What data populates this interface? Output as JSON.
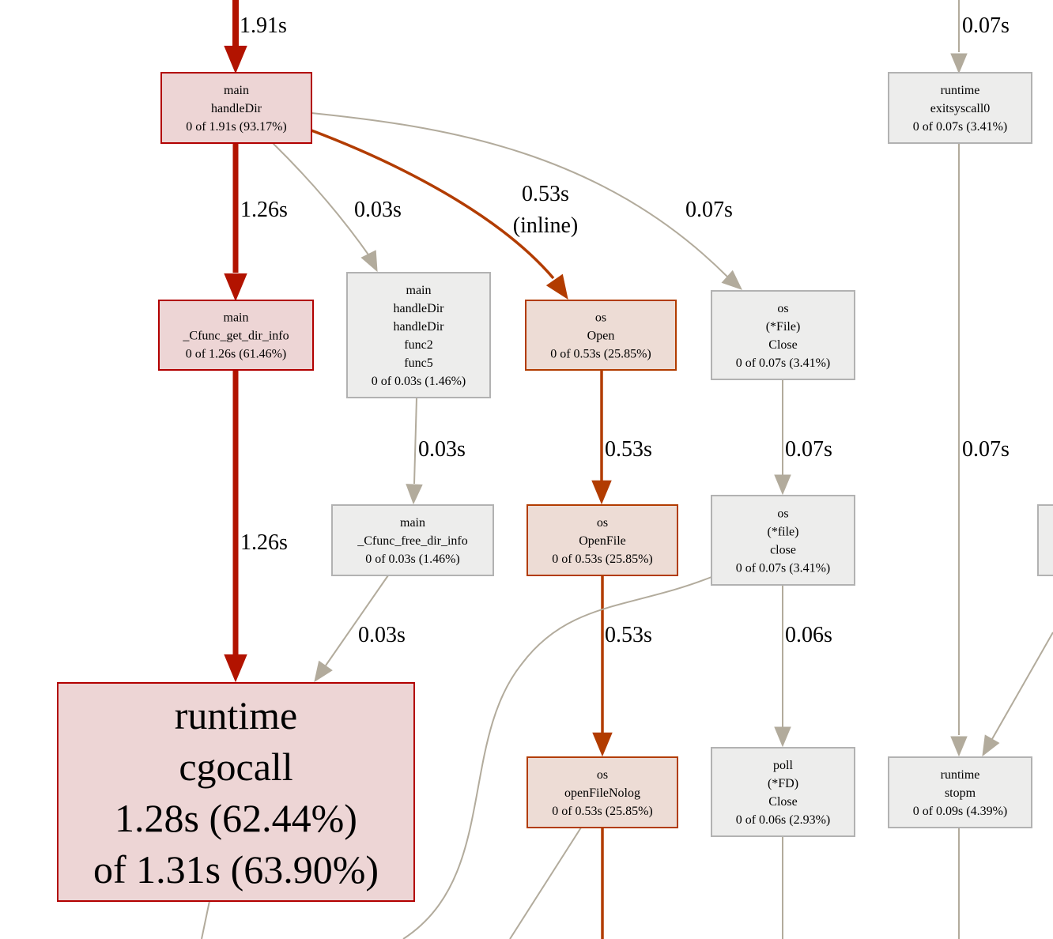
{
  "colors": {
    "hot_fill": "#edd5d5",
    "hot_stroke": "#b20000",
    "hot_edge": "#b21300",
    "warm_fill": "#eddcd5",
    "warm_stroke": "#b23c00",
    "warm_edge": "#b23c00",
    "cold_fill": "#ededec",
    "cold_stroke": "#b2b2b2",
    "cold_edge": "#b2ab9c"
  },
  "nodes": {
    "handleDir": {
      "lines": [
        "main",
        "handleDir",
        "0 of 1.91s (93.17%)"
      ],
      "heat": "hot"
    },
    "cfunc_get_dir_info": {
      "lines": [
        "main",
        "_Cfunc_get_dir_info",
        "0 of 1.26s (61.46%)"
      ],
      "heat": "hot"
    },
    "handleDir_func5": {
      "lines": [
        "main",
        "handleDir",
        "handleDir",
        "func2",
        "func5",
        "0 of 0.03s (1.46%)"
      ],
      "heat": "cold"
    },
    "os_open": {
      "lines": [
        "os",
        "Open",
        "0 of 0.53s (25.85%)"
      ],
      "heat": "warm"
    },
    "file_close": {
      "lines": [
        "os",
        "(*File)",
        "Close",
        "0 of 0.07s (3.41%)"
      ],
      "heat": "cold"
    },
    "cfunc_free_dir_info": {
      "lines": [
        "main",
        "_Cfunc_free_dir_info",
        "0 of 0.03s (1.46%)"
      ],
      "heat": "cold"
    },
    "os_openfile": {
      "lines": [
        "os",
        "OpenFile",
        "0 of 0.53s (25.85%)"
      ],
      "heat": "warm"
    },
    "file_close_lower": {
      "lines": [
        "os",
        "(*file)",
        "close",
        "0 of 0.07s (3.41%)"
      ],
      "heat": "cold"
    },
    "cgocall": {
      "lines": [
        "runtime",
        "cgocall",
        "1.28s (62.44%)",
        "of 1.31s (63.90%)"
      ],
      "heat": "hot"
    },
    "openFileNolog": {
      "lines": [
        "os",
        "openFileNolog",
        "0 of 0.53s (25.85%)"
      ],
      "heat": "warm"
    },
    "fd_close": {
      "lines": [
        "poll",
        "(*FD)",
        "Close",
        "0 of 0.06s (2.93%)"
      ],
      "heat": "cold"
    },
    "exitsyscall0": {
      "lines": [
        "runtime",
        "exitsyscall0",
        "0 of 0.07s (3.41%)"
      ],
      "heat": "cold"
    },
    "stopm": {
      "lines": [
        "runtime",
        "stopm",
        "0 of 0.09s (4.39%)"
      ],
      "heat": "cold"
    },
    "partial_right": {
      "lines": [],
      "heat": "cold"
    }
  },
  "edges": {
    "in_handleDir": {
      "label": [
        "1.91s"
      ],
      "heat": "hot"
    },
    "handleDir_to_cfunc_get": {
      "label": [
        "1.26s"
      ],
      "heat": "hot"
    },
    "handleDir_to_func5": {
      "label": [
        "0.03s"
      ],
      "heat": "cold"
    },
    "handleDir_to_open": {
      "label": [
        "0.53s",
        "(inline)"
      ],
      "heat": "warm"
    },
    "handleDir_to_file_close": {
      "label": [
        "0.07s"
      ],
      "heat": "cold"
    },
    "cfunc_get_to_cgocall": {
      "label": [
        "1.26s"
      ],
      "heat": "hot"
    },
    "func5_to_free": {
      "label": [
        "0.03s"
      ],
      "heat": "cold"
    },
    "free_to_cgocall": {
      "label": [
        "0.03s"
      ],
      "heat": "cold"
    },
    "open_to_openfile": {
      "label": [
        "0.53s"
      ],
      "heat": "warm"
    },
    "openfile_to_nolog": {
      "label": [
        "0.53s"
      ],
      "heat": "warm"
    },
    "file_close_to_lower": {
      "label": [
        "0.07s"
      ],
      "heat": "cold"
    },
    "lower_to_fd_close": {
      "label": [
        "0.06s"
      ],
      "heat": "cold"
    },
    "in_exitsyscall0": {
      "label": [
        "0.07s"
      ],
      "heat": "cold"
    },
    "exitsyscall0_to_stopm": {
      "label": [
        "0.07s"
      ],
      "heat": "cold"
    },
    "partial_to_stopm": {
      "label": [],
      "heat": "cold"
    },
    "lower_out": {
      "label": [],
      "heat": "cold"
    },
    "cgocall_out": {
      "label": [],
      "heat": "cold"
    },
    "nolog_out_warm": {
      "label": [],
      "heat": "warm"
    },
    "nolog_out_cold": {
      "label": [],
      "heat": "cold"
    },
    "fd_close_out": {
      "label": [],
      "heat": "cold"
    },
    "stopm_out": {
      "label": [],
      "heat": "cold"
    }
  }
}
